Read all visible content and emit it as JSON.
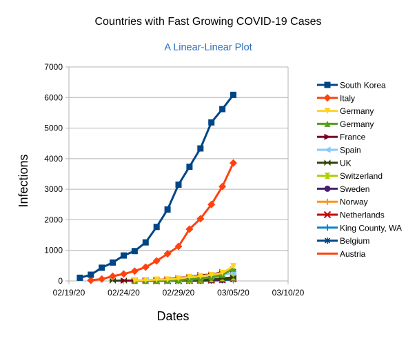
{
  "chart_data": {
    "type": "line",
    "title": "Countries with Fast Growing COVID-19 Cases",
    "subtitle": "A Linear-Linear Plot",
    "xlabel": "Dates",
    "ylabel": "Infections",
    "x_ticks": [
      "02/19/20",
      "02/24/20",
      "02/29/20",
      "03/05/20",
      "03/10/20"
    ],
    "xlim": [
      "2020-02-19",
      "2020-03-10"
    ],
    "ylim": [
      0,
      7000
    ],
    "y_ticks": [
      0,
      1000,
      2000,
      3000,
      4000,
      5000,
      6000,
      7000
    ],
    "grid": "horizontal",
    "legend_position": "right",
    "colors": {
      "title": "#000000",
      "subtitle": "#2a6ebb",
      "gridline": "#b3b3b3"
    },
    "series": [
      {
        "name": "South Korea",
        "color": "#004586",
        "marker": "square",
        "x": [
          "2020-02-20",
          "2020-02-21",
          "2020-02-22",
          "2020-02-23",
          "2020-02-24",
          "2020-02-25",
          "2020-02-26",
          "2020-02-27",
          "2020-02-28",
          "2020-02-29",
          "2020-03-01",
          "2020-03-02",
          "2020-03-03",
          "2020-03-04",
          "2020-03-05"
        ],
        "y": [
          104,
          204,
          433,
          602,
          833,
          977,
          1261,
          1766,
          2337,
          3150,
          3736,
          4335,
          5186,
          5621,
          6088
        ]
      },
      {
        "name": "Italy",
        "color": "#ff420e",
        "marker": "diamond",
        "x": [
          "2020-02-21",
          "2020-02-22",
          "2020-02-23",
          "2020-02-24",
          "2020-02-25",
          "2020-02-26",
          "2020-02-27",
          "2020-02-28",
          "2020-02-29",
          "2020-03-01",
          "2020-03-02",
          "2020-03-03",
          "2020-03-04",
          "2020-03-05"
        ],
        "y": [
          20,
          62,
          155,
          229,
          322,
          453,
          655,
          888,
          1128,
          1694,
          2036,
          2502,
          3089,
          3858
        ]
      },
      {
        "name": "Germany",
        "color": "#ffd320",
        "marker": "triangle-down",
        "x": [
          "2020-02-25",
          "2020-02-26",
          "2020-02-27",
          "2020-02-28",
          "2020-02-29",
          "2020-03-01",
          "2020-03-02",
          "2020-03-03",
          "2020-03-04",
          "2020-03-05"
        ],
        "y": [
          17,
          27,
          46,
          48,
          79,
          130,
          159,
          196,
          262,
          482
        ]
      },
      {
        "name": "Germany",
        "color": "#579d1c",
        "marker": "triangle-up",
        "x": [
          "2020-02-25",
          "2020-02-26",
          "2020-02-27",
          "2020-02-28",
          "2020-02-29",
          "2020-03-01",
          "2020-03-02",
          "2020-03-03",
          "2020-03-04",
          "2020-03-05"
        ],
        "y": [
          2,
          4,
          5,
          14,
          30,
          50,
          80,
          120,
          200,
          400
        ]
      },
      {
        "name": "France",
        "color": "#7e0021",
        "marker": "triangle-right",
        "x": [
          "2020-02-24",
          "2020-02-25",
          "2020-02-26",
          "2020-02-27",
          "2020-02-28",
          "2020-02-29",
          "2020-03-01",
          "2020-03-02",
          "2020-03-03",
          "2020-03-04",
          "2020-03-05"
        ],
        "y": [
          12,
          14,
          18,
          38,
          57,
          100,
          130,
          191,
          204,
          285,
          377
        ]
      },
      {
        "name": "Spain",
        "color": "#83caff",
        "marker": "triangle-left",
        "x": [
          "2020-02-25",
          "2020-02-26",
          "2020-02-27",
          "2020-02-28",
          "2020-02-29",
          "2020-03-01",
          "2020-03-02",
          "2020-03-03",
          "2020-03-04",
          "2020-03-05"
        ],
        "y": [
          6,
          13,
          15,
          32,
          45,
          84,
          120,
          165,
          222,
          259
        ]
      },
      {
        "name": "UK",
        "color": "#314004",
        "marker": "bowtie",
        "x": [
          "2020-02-23",
          "2020-02-24",
          "2020-02-25",
          "2020-02-26",
          "2020-02-27",
          "2020-02-28",
          "2020-02-29",
          "2020-03-01",
          "2020-03-02",
          "2020-03-03",
          "2020-03-04",
          "2020-03-05"
        ],
        "y": [
          9,
          13,
          13,
          13,
          15,
          20,
          23,
          36,
          40,
          51,
          85,
          115
        ]
      },
      {
        "name": "Switzerland",
        "color": "#aecf00",
        "marker": "hourglass",
        "x": [
          "2020-02-26",
          "2020-02-27",
          "2020-02-28",
          "2020-02-29",
          "2020-03-01",
          "2020-03-02",
          "2020-03-03",
          "2020-03-04",
          "2020-03-05"
        ],
        "y": [
          1,
          8,
          8,
          18,
          27,
          42,
          56,
          90,
          114
        ]
      },
      {
        "name": "Sweden",
        "color": "#4b1f6f",
        "marker": "circle",
        "x": [
          "2020-02-27",
          "2020-02-28",
          "2020-02-29",
          "2020-03-01",
          "2020-03-02",
          "2020-03-03",
          "2020-03-04",
          "2020-03-05"
        ],
        "y": [
          2,
          7,
          12,
          14,
          15,
          21,
          35,
          94
        ]
      },
      {
        "name": "Norway",
        "color": "#ff950e",
        "marker": "plus",
        "x": [
          "2020-02-27",
          "2020-02-28",
          "2020-02-29",
          "2020-03-01",
          "2020-03-02",
          "2020-03-03",
          "2020-03-04",
          "2020-03-05"
        ],
        "y": [
          1,
          6,
          15,
          19,
          25,
          32,
          56,
          87
        ]
      },
      {
        "name": "Netherlands",
        "color": "#c5000b",
        "marker": "x",
        "x": [
          "2020-02-27",
          "2020-02-28",
          "2020-02-29",
          "2020-03-01",
          "2020-03-02",
          "2020-03-03",
          "2020-03-04",
          "2020-03-05"
        ],
        "y": [
          1,
          1,
          6,
          10,
          18,
          24,
          38,
          82
        ]
      },
      {
        "name": "King County, WA",
        "color": "#0084d1",
        "marker": "plus",
        "x": [
          "2020-02-28",
          "2020-02-29",
          "2020-03-01",
          "2020-03-02",
          "2020-03-03",
          "2020-03-04",
          "2020-03-05"
        ],
        "y": [
          1,
          3,
          10,
          14,
          21,
          31,
          51
        ]
      },
      {
        "name": "Belgium",
        "color": "#004586",
        "marker": "star",
        "x": [
          "2020-03-01",
          "2020-03-02",
          "2020-03-03",
          "2020-03-04",
          "2020-03-05"
        ],
        "y": [
          2,
          8,
          13,
          23,
          50
        ]
      },
      {
        "name": "Austria",
        "color": "#ff420e",
        "marker": "none",
        "x": [
          "2020-02-25",
          "2020-02-26",
          "2020-02-27",
          "2020-02-28",
          "2020-02-29",
          "2020-03-01",
          "2020-03-02",
          "2020-03-03",
          "2020-03-04",
          "2020-03-05"
        ],
        "y": [
          2,
          2,
          3,
          3,
          9,
          14,
          18,
          21,
          29,
          41
        ]
      }
    ]
  }
}
